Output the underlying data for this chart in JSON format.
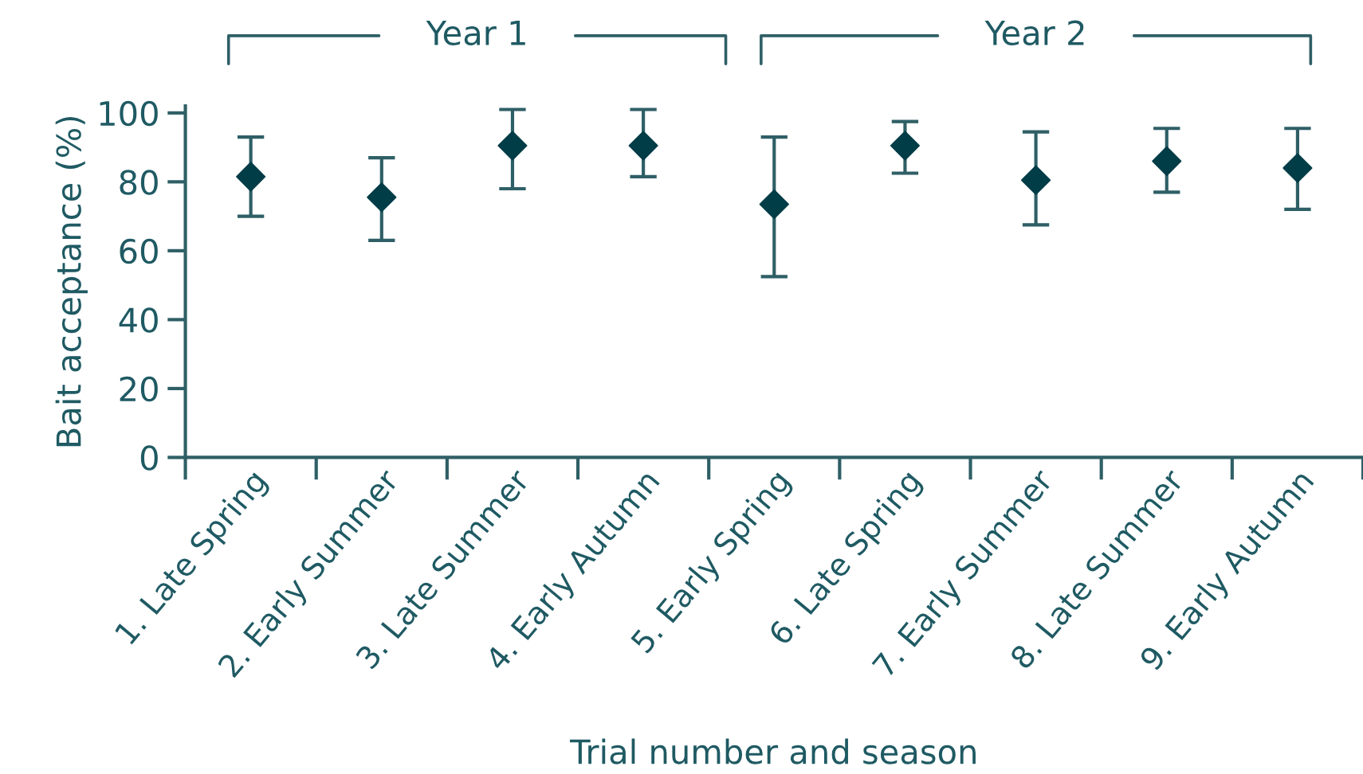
{
  "chart_data": {
    "type": "scatter",
    "xlabel": "Trial number and season",
    "ylabel": "Bait acceptance (%)",
    "categories": [
      "1. Late Spring",
      "2. Early Summer",
      "3. Late Summer",
      "4. Early Autumn",
      "5. Early Spring",
      "6. Late Spring",
      "7. Early Summer",
      "8. Late Summer",
      "9. Early Autumn"
    ],
    "values": [
      81.5,
      75.5,
      90.5,
      90.5,
      73.5,
      90.5,
      80.5,
      86,
      84
    ],
    "errors": [
      [
        70,
        93
      ],
      [
        63,
        87
      ],
      [
        78,
        101
      ],
      [
        81.5,
        101
      ],
      [
        52.5,
        93
      ],
      [
        82.5,
        97.5
      ],
      [
        67.5,
        94.5
      ],
      [
        77,
        95.5
      ],
      [
        72,
        95.5
      ]
    ],
    "color": "#003d47",
    "marker": "diamond",
    "grid": false,
    "ylim": [
      0,
      102
    ],
    "yticks": [
      0,
      20,
      40,
      60,
      80,
      100
    ],
    "annotations": [
      "Year 1",
      "Year 2"
    ]
  }
}
